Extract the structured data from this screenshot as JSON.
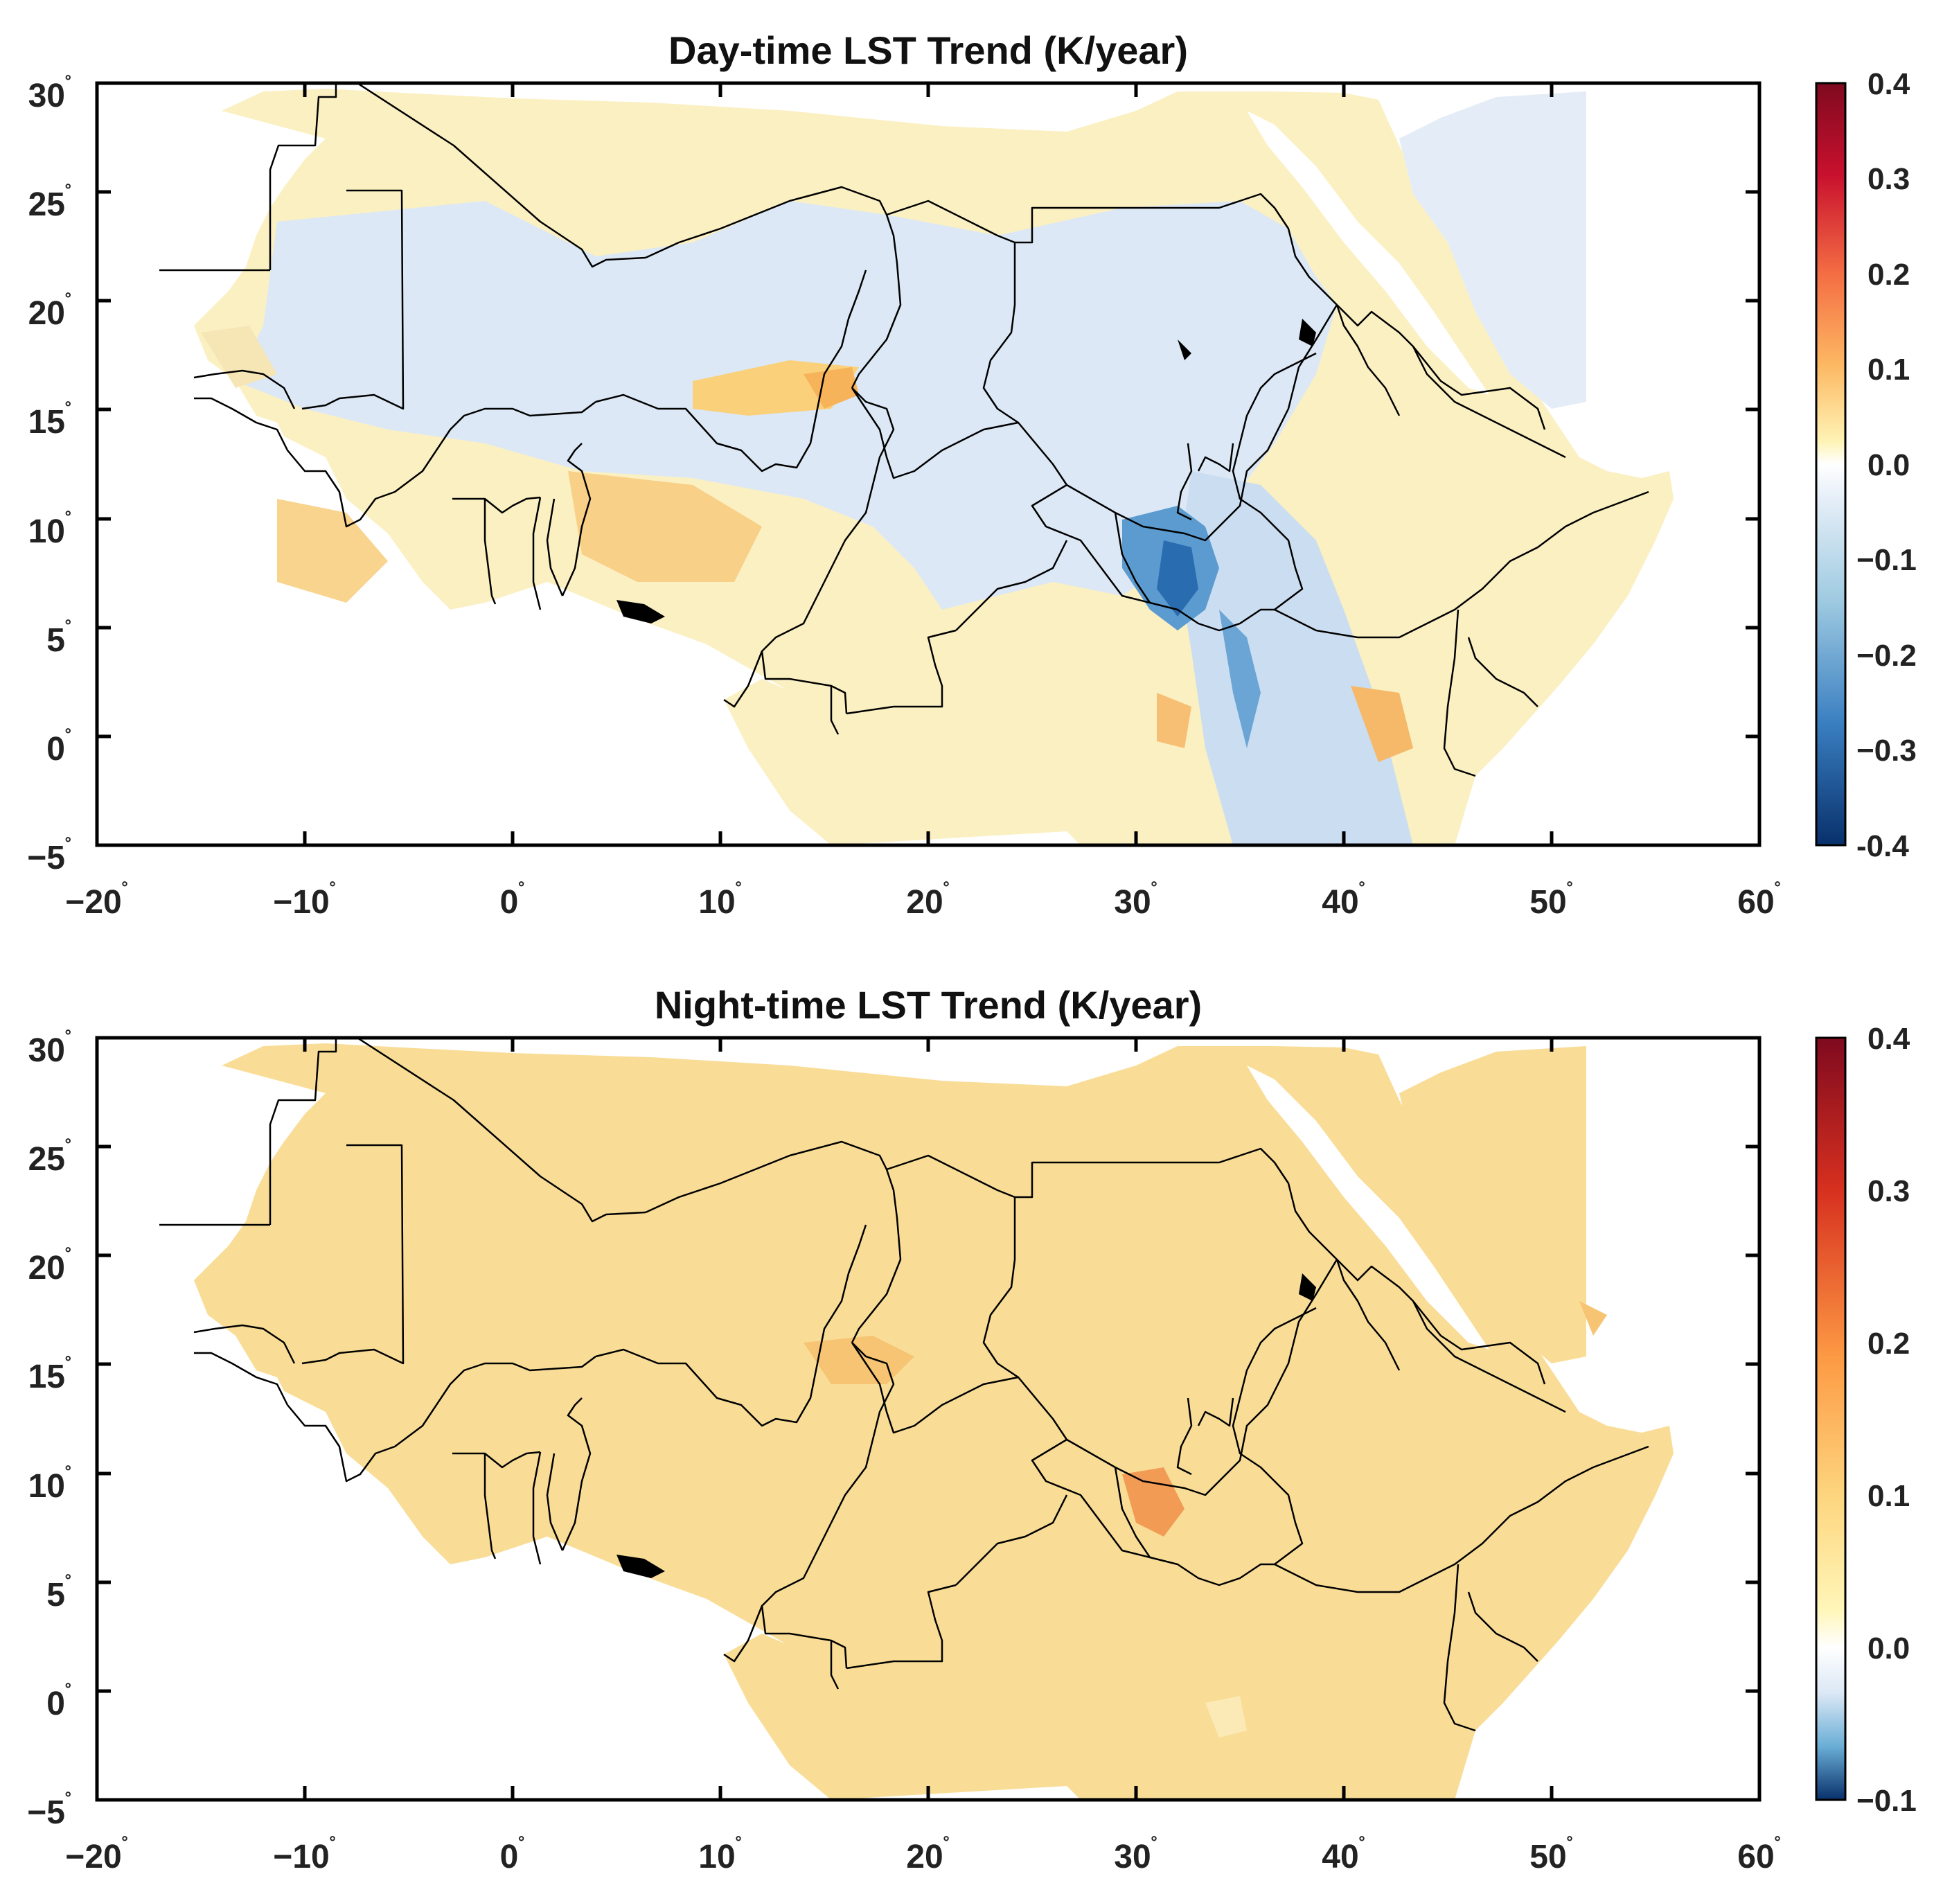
{
  "panels": [
    {
      "id": "day",
      "title": "Day-time LST Trend (K/year)",
      "x_ticks": [
        "−20",
        "−10",
        "0",
        "10",
        "20",
        "30",
        "40",
        "50",
        "60"
      ],
      "y_ticks": [
        "30",
        "25",
        "20",
        "15",
        "10",
        "5",
        "0",
        "−5"
      ],
      "colorbar": {
        "range": [
          -0.4,
          0.4
        ],
        "ticks": [
          "0.4",
          "0.3",
          "0.2",
          "0.1",
          "0.0",
          "−0.1",
          "−0.2",
          "−0.3",
          "-0.4"
        ]
      }
    },
    {
      "id": "night",
      "title": "Night-time LST Trend (K/year)",
      "x_ticks": [
        "−20",
        "−10",
        "0",
        "10",
        "20",
        "30",
        "40",
        "50",
        "60"
      ],
      "y_ticks": [
        "30",
        "25",
        "20",
        "15",
        "10",
        "5",
        "0",
        "−5"
      ],
      "colorbar": {
        "range": [
          -0.1,
          0.4
        ],
        "ticks": [
          "0.4",
          "0.3",
          "0.2",
          "0.1",
          "0.0",
          "−0.1"
        ]
      }
    }
  ],
  "degree_symbol": "˚",
  "colors": {
    "dark_red": "#7f0a1f",
    "red": "#d7301f",
    "orange": "#fd9a44",
    "light_yellow": "#fdf4b0",
    "white": "#ffffff",
    "light_blue": "#c6dbef",
    "blue": "#4a90c8",
    "dark_blue": "#08306b",
    "day_land": "#fbf0c2",
    "day_cool": "#dde9f6",
    "night_land": "#f9dd97"
  }
}
